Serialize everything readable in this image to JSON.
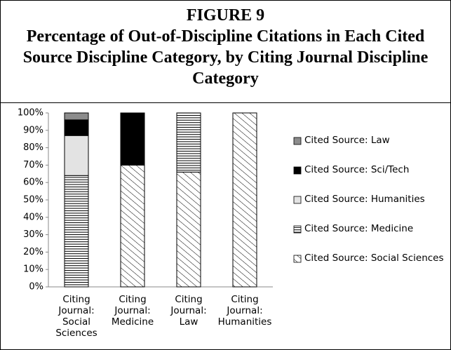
{
  "chart_data": {
    "type": "stacked-bar",
    "title": "FIGURE 9",
    "subtitle": "Percentage of Out-of-Discipline Citations in Each Cited Source Discipline Category, by Citing Journal Discipline Category",
    "categories": [
      "Citing Journal: Social Sciences",
      "Citing Journal: Medicine",
      "Citing Journal: Law",
      "Citing Journal: Humanities"
    ],
    "series": [
      {
        "name": "Cited Source: Social Sciences",
        "color": "#ffffff",
        "pattern": "diagonal-lines",
        "values": [
          0,
          70,
          66,
          100
        ]
      },
      {
        "name": "Cited Source: Medicine",
        "color": "#ffffff",
        "pattern": "horizontal-lines",
        "values": [
          64,
          0,
          34,
          0
        ]
      },
      {
        "name": "Cited Source: Humanities",
        "color": "#e3e3e3",
        "values": [
          23,
          0,
          0,
          0
        ]
      },
      {
        "name": "Cited Source: Sci/Tech",
        "color": "#000000",
        "values": [
          9,
          30,
          0,
          0
        ]
      },
      {
        "name": "Cited Source: Law",
        "color": "#8c8c8c",
        "values": [
          4,
          0,
          0,
          0
        ]
      }
    ],
    "ylim": [
      0,
      100
    ],
    "yticks": [
      {
        "value": 0,
        "label": "0%"
      },
      {
        "value": 10,
        "label": "10%"
      },
      {
        "value": 20,
        "label": "20%"
      },
      {
        "value": 30,
        "label": "30%"
      },
      {
        "value": 40,
        "label": "40%"
      },
      {
        "value": 50,
        "label": "50%"
      },
      {
        "value": 60,
        "label": "60%"
      },
      {
        "value": 70,
        "label": "70%"
      },
      {
        "value": 80,
        "label": "80%"
      },
      {
        "value": 90,
        "label": "90%"
      },
      {
        "value": 100,
        "label": "100%"
      }
    ],
    "legend": "right"
  }
}
